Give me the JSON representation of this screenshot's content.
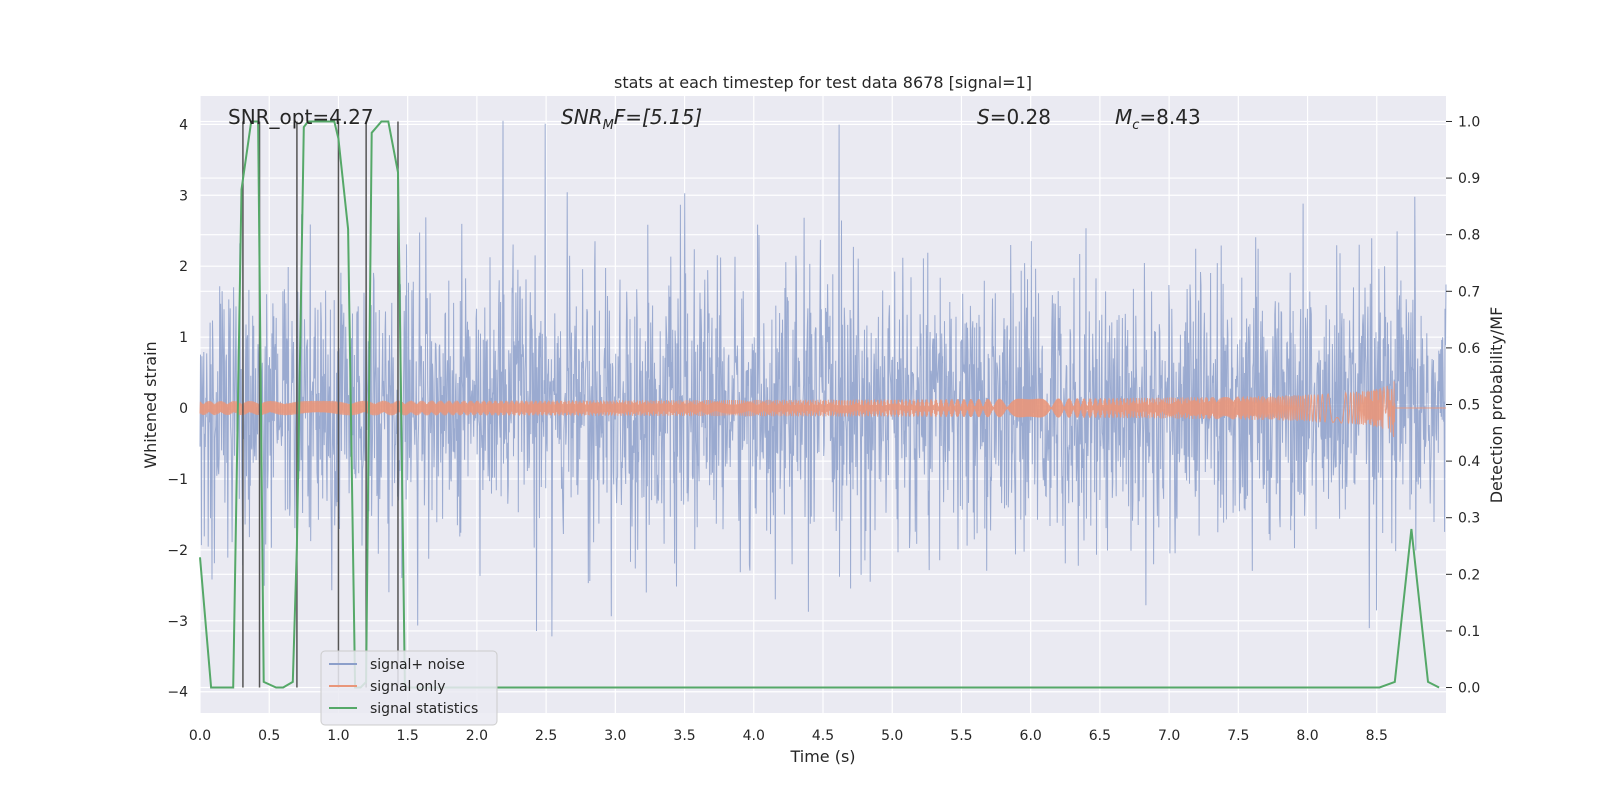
{
  "chart_data": {
    "type": "line",
    "title": "stats at each timestep for test data 8678 [signal=1]",
    "xlabel": "Time (s)",
    "ylabel": "Whitened strain",
    "y2label": "Detection probability/MF",
    "xlim": [
      0.0,
      9.0
    ],
    "ylim": [
      -4.3,
      4.4
    ],
    "y2lim": [
      -0.045,
      1.045
    ],
    "xticks": [
      "0.0",
      "0.5",
      "1.0",
      "1.5",
      "2.0",
      "2.5",
      "3.0",
      "3.5",
      "4.0",
      "4.5",
      "5.0",
      "5.5",
      "6.0",
      "6.5",
      "7.0",
      "7.5",
      "8.0",
      "8.5"
    ],
    "yticks": [
      "4",
      "3",
      "2",
      "1",
      "0",
      "−1",
      "−2",
      "−3",
      "−4"
    ],
    "y2ticks": [
      "1.0",
      "0.9",
      "0.8",
      "0.7",
      "0.6",
      "0.5",
      "0.4",
      "0.3",
      "0.2",
      "0.1",
      "0.0"
    ],
    "grid": true,
    "legend_position": "bottom-left",
    "annotations": {
      "snr_opt": "SNR_opt=4.27",
      "snr_mf_name": "SNR",
      "snr_mf_sub": "M",
      "snr_mf_rest": "F=[5.15]",
      "s_name": "S",
      "s_rest": "=0.28",
      "mc_name": "M",
      "mc_sub": "c",
      "mc_rest": "=8.43"
    },
    "series": [
      {
        "name": "signal+ noise",
        "color": "#8c9fca",
        "description": "whitened noisy strain, spans roughly -2.0 to +2.0 with spikes up to about +4.0 and down to about -4.0"
      },
      {
        "name": "signal only",
        "color": "#e9967a",
        "description": "chirp waveform centred on 0, amplitude growing to about 0.45 at t=8.63 s then ending",
        "chirp_peak_time": 8.63,
        "chirp_peak_amplitude": 0.45
      },
      {
        "name": "signal statistics",
        "color": "#55a868",
        "x": [
          0.0,
          0.08,
          0.24,
          0.3,
          0.37,
          0.42,
          0.46,
          0.55,
          0.6,
          0.67,
          0.7,
          0.75,
          0.78,
          0.82,
          0.87,
          0.97,
          1.0,
          1.07,
          1.12,
          1.16,
          1.2,
          1.24,
          1.31,
          1.36,
          1.43,
          1.48,
          1.52,
          8.52,
          8.63,
          8.75,
          8.87,
          8.95
        ],
        "values": [
          0.23,
          0.0,
          0.0,
          0.88,
          1.0,
          1.0,
          0.01,
          0.0,
          0.0,
          0.01,
          0.25,
          0.99,
          1.0,
          1.0,
          1.0,
          1.0,
          0.97,
          0.81,
          0.0,
          0.0,
          0.01,
          0.98,
          1.0,
          1.0,
          0.91,
          0.0,
          0.0,
          0.0,
          0.01,
          0.28,
          0.01,
          0.0
        ]
      },
      {
        "name": "vertical markers",
        "color": "#555555",
        "x": [
          0.31,
          0.43,
          0.7,
          1.0,
          1.2,
          1.43
        ]
      }
    ]
  }
}
